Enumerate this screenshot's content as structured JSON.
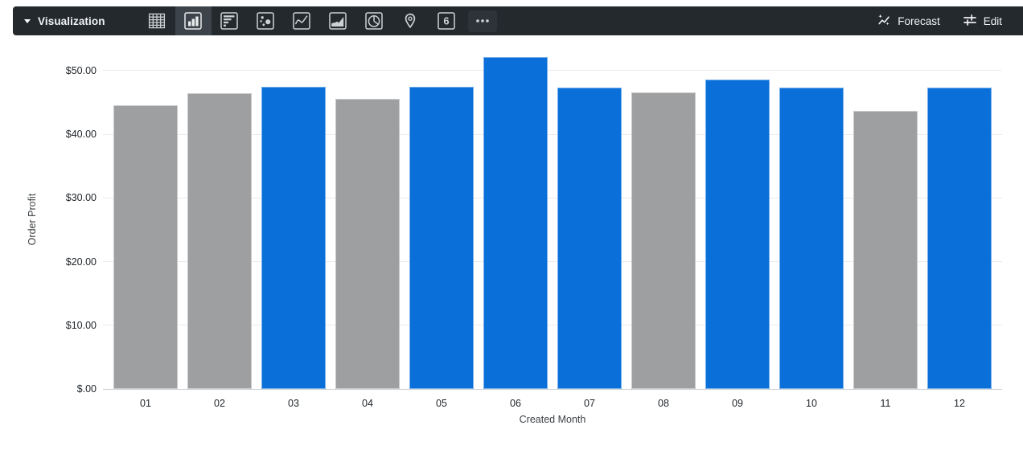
{
  "toolbar": {
    "visualization_label": "Visualization",
    "forecast_label": "Forecast",
    "edit_label": "Edit",
    "viz_types": [
      {
        "name": "table",
        "selected": false
      },
      {
        "name": "column",
        "selected": true
      },
      {
        "name": "bar",
        "selected": false
      },
      {
        "name": "scatter",
        "selected": false
      },
      {
        "name": "line",
        "selected": false
      },
      {
        "name": "area",
        "selected": false
      },
      {
        "name": "pie",
        "selected": false
      },
      {
        "name": "map",
        "selected": false
      },
      {
        "name": "single-value",
        "selected": false,
        "label": "6"
      },
      {
        "name": "more",
        "selected": false
      }
    ],
    "colors": {
      "background": "#24292e",
      "selected_background": "#3c434a",
      "icon": "#cdd1d5",
      "text": "#f1f3f4"
    }
  },
  "chart_data": {
    "type": "bar",
    "title": "",
    "xlabel": "Created Month",
    "ylabel": "Order Profit",
    "categories": [
      "01",
      "02",
      "03",
      "04",
      "05",
      "06",
      "07",
      "08",
      "09",
      "10",
      "11",
      "12"
    ],
    "values": [
      44.5,
      46.4,
      47.5,
      45.5,
      47.5,
      52.1,
      47.3,
      46.6,
      48.6,
      47.3,
      43.7,
      47.3
    ],
    "bar_colors": [
      "gray",
      "gray",
      "blue",
      "gray",
      "blue",
      "blue",
      "blue",
      "gray",
      "blue",
      "blue",
      "gray",
      "blue"
    ],
    "palette": {
      "blue": "#0a6fd9",
      "gray": "#9e9fa1"
    },
    "y_ticks": [
      {
        "label": "$50.00",
        "value": 50
      },
      {
        "label": "$40.00",
        "value": 40
      },
      {
        "label": "$30.00",
        "value": 30
      },
      {
        "label": "$20.00",
        "value": 20
      },
      {
        "label": "$10.00",
        "value": 10
      },
      {
        "label": "$.00",
        "value": 0
      }
    ],
    "ylim": [
      0,
      53.5
    ],
    "grid": true,
    "legend": "none"
  }
}
